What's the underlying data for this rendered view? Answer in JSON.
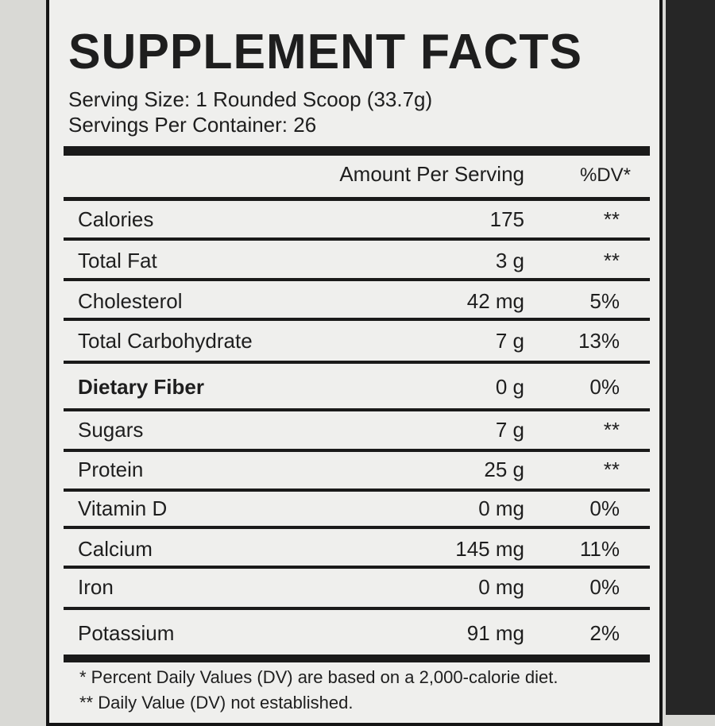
{
  "header": {
    "title": "SUPPLEMENT FACTS",
    "serving_size": "Serving Size: 1 Rounded Scoop (33.7g)",
    "servings_per_container": "Servings Per Container: 26"
  },
  "table": {
    "columns": [
      "Amount Per Serving",
      "%DV*"
    ],
    "rows": [
      [
        "Calories",
        "175",
        "**"
      ],
      [
        "Total Fat",
        "3 g",
        "**"
      ],
      [
        "Cholesterol",
        "42 mg",
        "5%"
      ],
      [
        "Total Carbohydrate",
        "7 g",
        "13%"
      ],
      [
        "Dietary Fiber",
        "0 g",
        "0%"
      ],
      [
        "Sugars",
        "7 g",
        "**"
      ],
      [
        "Protein",
        "25 g",
        "**"
      ],
      [
        "Vitamin D",
        "0 mg",
        "0%"
      ],
      [
        "Calcium",
        "145 mg",
        "11%"
      ],
      [
        "Iron",
        "0 mg",
        "0%"
      ],
      [
        "Potassium",
        "91 mg",
        "2%"
      ]
    ]
  },
  "footnotes": [
    "* Percent Daily Values (DV) are based on a 2,000-calorie diet.",
    "** Daily Value (DV) not established."
  ]
}
